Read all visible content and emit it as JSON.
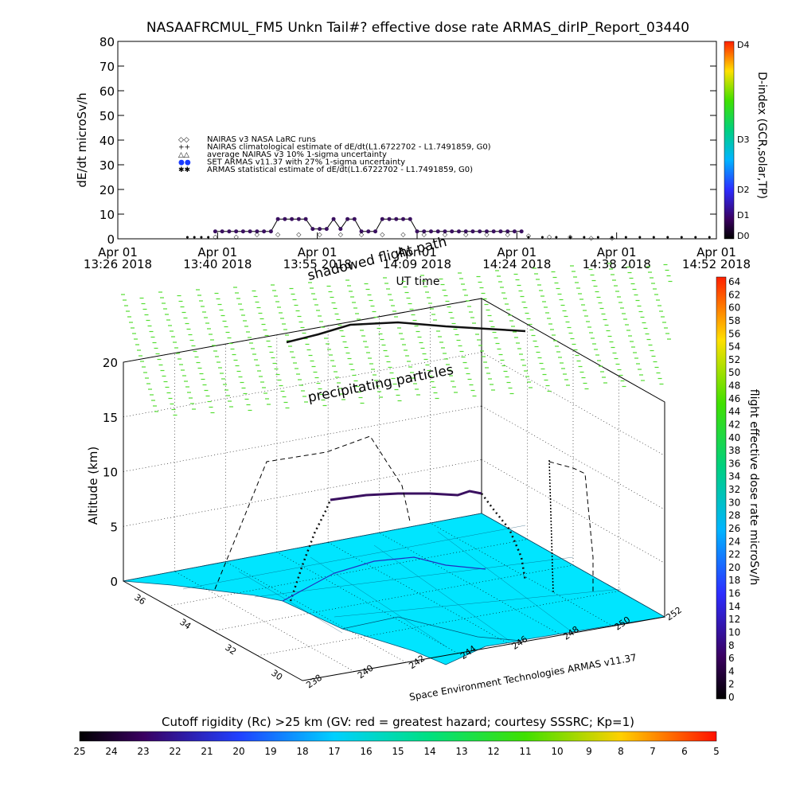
{
  "top_chart": {
    "title": "NASAAFRCMUL_FM5 Unkn Tail#? effective dose rate ARMAS_dirIP_Report_03440",
    "ylabel": "dE/dt microSv/h",
    "xlabel": "UT time",
    "y_ticks": [
      "0",
      "10",
      "20",
      "30",
      "40",
      "50",
      "60",
      "70",
      "80"
    ],
    "x_ticks": [
      {
        "line1": "Apr 01",
        "line2": "13:26 2018"
      },
      {
        "line1": "Apr 01",
        "line2": "13:40 2018"
      },
      {
        "line1": "Apr 01",
        "line2": "13:55 2018"
      },
      {
        "line1": "Apr 01",
        "line2": "14:09 2018"
      },
      {
        "line1": "Apr 01",
        "line2": "14:24 2018"
      },
      {
        "line1": "Apr 01",
        "line2": "14:38 2018"
      },
      {
        "line1": "Apr 01",
        "line2": "14:52 2018"
      }
    ],
    "legend": [
      {
        "symbol": "◇◇",
        "label": "NAIRAS v3 NASA LaRC runs"
      },
      {
        "symbol": "++",
        "label": "NAIRAS climatological estimate of dE/dt(L1.6722702 - L1.7491859, G0)"
      },
      {
        "symbol": "△△",
        "label": "average NAIRAS v3 10% 1-sigma uncertainty"
      },
      {
        "symbol": "●●",
        "label": "SET ARMAS v11.37 with 27% 1-sigma uncertainty",
        "color": "#1a3cff"
      },
      {
        "symbol": "✱✱",
        "label": "ARMAS statistical estimate of dE/dt(L1.6722702 - L1.7491859, G0)"
      }
    ],
    "dindex_label": "D-index (GCR,solar,TP)",
    "dindex_ticks": [
      "D0",
      "D1",
      "D2",
      "D3",
      "D4"
    ]
  },
  "chart_data": [
    {
      "type": "scatter",
      "title": "NASAAFRCMUL_FM5 Unkn Tail#? effective dose rate ARMAS_dirIP_Report_03440",
      "xlabel": "UT time",
      "ylabel": "dE/dt microSv/h",
      "x_range": [
        "13:26",
        "14:52"
      ],
      "ylim": [
        0,
        80
      ],
      "series": [
        {
          "name": "SET ARMAS v11.37 with 27% 1-sigma uncertainty",
          "x": [
            "13:40",
            "13:41",
            "13:42",
            "13:43",
            "13:44",
            "13:45",
            "13:46",
            "13:47",
            "13:48",
            "13:49",
            "13:50",
            "13:51",
            "13:52",
            "13:53",
            "13:54",
            "13:55",
            "13:56",
            "13:57",
            "13:58",
            "13:59",
            "14:00",
            "14:01",
            "14:02",
            "14:03",
            "14:04",
            "14:05",
            "14:06",
            "14:07",
            "14:08",
            "14:09",
            "14:10",
            "14:11",
            "14:12",
            "14:13",
            "14:14",
            "14:15",
            "14:16",
            "14:17",
            "14:18",
            "14:19",
            "14:20",
            "14:21",
            "14:22",
            "14:23",
            "14:24"
          ],
          "values": [
            3,
            3,
            3,
            3,
            3,
            3,
            3,
            3,
            3,
            8,
            8,
            8,
            8,
            8,
            4,
            4,
            4,
            8,
            4,
            8,
            8,
            3,
            3,
            3,
            8,
            8,
            8,
            8,
            8,
            3,
            3,
            3,
            3,
            3,
            3,
            3,
            3,
            3,
            3,
            3,
            3,
            3,
            3,
            3,
            3
          ]
        },
        {
          "name": "NAIRAS v3 NASA LaRC runs",
          "x": [
            "13:40",
            "13:43",
            "13:46",
            "13:49",
            "13:52",
            "13:55",
            "13:58",
            "14:01",
            "14:04",
            "14:07",
            "14:10",
            "14:13",
            "14:16",
            "14:19",
            "14:22",
            "14:25",
            "14:28",
            "14:31",
            "14:34",
            "14:37"
          ],
          "values": [
            1,
            1,
            2,
            2,
            2,
            2,
            2,
            2,
            2,
            2,
            2,
            2,
            2,
            2,
            2,
            1.5,
            1,
            1,
            0.5,
            0.5
          ]
        }
      ]
    },
    {
      "type": "scatter",
      "title": "",
      "xlabel": "",
      "ylabel": "Altitude (km)",
      "zlim": [
        0,
        20
      ],
      "z_ticks": [
        "0",
        "5",
        "10",
        "15",
        "20"
      ],
      "lat_ticks": [
        "30",
        "32",
        "34",
        "36"
      ],
      "lon_ticks": [
        "238",
        "240",
        "242",
        "244",
        "246",
        "248",
        "250",
        "252"
      ]
    }
  ],
  "three_d": {
    "alt_label": "Altitude (km)",
    "z_ticks": [
      "0",
      "5",
      "10",
      "15",
      "20"
    ],
    "lat_ticks": [
      "30",
      "32",
      "34",
      "36"
    ],
    "lon_ticks": [
      "238",
      "240",
      "242",
      "244",
      "246",
      "248",
      "250",
      "252"
    ],
    "annotation_shadowed": "shadowed flight path",
    "annotation_precip": "precipitating particles",
    "credit": "Space Environment Technologies ARMAS v11.37",
    "rate_label": "flight effective dose rate microSv/h",
    "rate_ticks": [
      "0",
      "2",
      "4",
      "6",
      "8",
      "10",
      "12",
      "14",
      "16",
      "18",
      "20",
      "22",
      "24",
      "26",
      "28",
      "30",
      "32",
      "34",
      "36",
      "38",
      "40",
      "42",
      "44",
      "46",
      "48",
      "50",
      "52",
      "54",
      "56",
      "58",
      "60",
      "62",
      "64"
    ],
    "land_color": "#00e5ff"
  },
  "bottom_bar": {
    "label": "Cutoff rigidity (Rc) >25 km (GV: red = greatest hazard; courtesy SSSRC; Kp=1)",
    "ticks": [
      "25",
      "24",
      "23",
      "22",
      "21",
      "20",
      "19",
      "18",
      "17",
      "16",
      "15",
      "14",
      "13",
      "12",
      "11",
      "10",
      "9",
      "8",
      "7",
      "6",
      "5"
    ]
  }
}
